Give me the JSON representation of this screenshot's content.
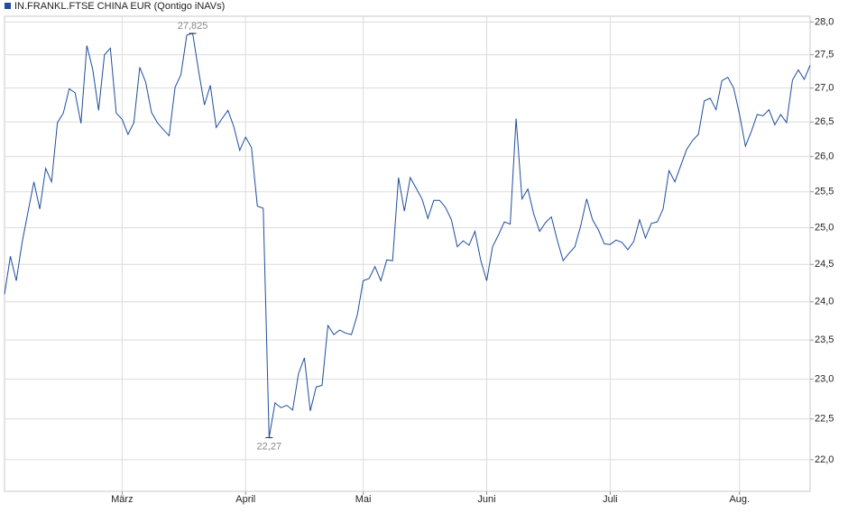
{
  "chart_data": {
    "type": "line",
    "legend": "top-left",
    "log": true,
    "grid": true,
    "ylim": [
      21.62,
      28.09
    ],
    "yticks": [
      {
        "value": 22,
        "label": "22,0"
      },
      {
        "value": 22.5,
        "label": "22,5"
      },
      {
        "value": 23,
        "label": "23,0"
      },
      {
        "value": 23.5,
        "label": "23,5"
      },
      {
        "value": 24,
        "label": "24,0"
      },
      {
        "value": 24.5,
        "label": "24,5"
      },
      {
        "value": 25,
        "label": "25,0"
      },
      {
        "value": 25.5,
        "label": "25,5"
      },
      {
        "value": 26,
        "label": "26,0"
      },
      {
        "value": 26.5,
        "label": "26,5"
      },
      {
        "value": 27,
        "label": "27,0"
      },
      {
        "value": 27.5,
        "label": "27,5"
      },
      {
        "value": 28,
        "label": "28,0"
      }
    ],
    "max_label": "27,825",
    "min_label": "22,27",
    "categories": [
      null,
      null,
      null,
      null,
      null,
      null,
      null,
      null,
      null,
      null,
      null,
      null,
      null,
      null,
      null,
      null,
      null,
      null,
      null,
      null,
      "März",
      null,
      null,
      null,
      null,
      null,
      null,
      null,
      null,
      null,
      null,
      null,
      null,
      null,
      null,
      null,
      null,
      null,
      null,
      null,
      null,
      "April",
      null,
      null,
      null,
      null,
      null,
      null,
      null,
      null,
      null,
      null,
      null,
      null,
      null,
      null,
      null,
      null,
      null,
      null,
      null,
      "Mai",
      null,
      null,
      null,
      null,
      null,
      null,
      null,
      null,
      null,
      null,
      null,
      null,
      null,
      null,
      null,
      null,
      null,
      null,
      null,
      null,
      "Juni",
      null,
      null,
      null,
      null,
      null,
      null,
      null,
      null,
      null,
      null,
      null,
      null,
      null,
      null,
      null,
      null,
      null,
      null,
      null,
      null,
      "Juli",
      null,
      null,
      null,
      null,
      null,
      null,
      null,
      null,
      null,
      null,
      null,
      null,
      null,
      null,
      null,
      null,
      null,
      null,
      null,
      null,
      null,
      "Aug.",
      null,
      null,
      null,
      null,
      null,
      null,
      null,
      null,
      null,
      null,
      null,
      null
    ],
    "series": [
      {
        "name": "IN.FRANKL.FTSE CHINA EUR (Qontigo iNAVs)",
        "color": "#1f4e9c",
        "values": [
          24.1,
          24.61,
          24.28,
          24.8,
          25.22,
          25.64,
          25.26,
          25.83,
          25.64,
          26.49,
          26.63,
          26.99,
          26.93,
          26.48,
          27.64,
          27.28,
          26.67,
          27.5,
          27.6,
          26.63,
          26.54,
          26.32,
          26.49,
          27.31,
          27.09,
          26.64,
          26.49,
          26.39,
          26.3,
          27.01,
          27.2,
          27.8,
          27.825,
          27.26,
          26.75,
          27.04,
          26.42,
          26.55,
          26.67,
          26.43,
          26.09,
          26.28,
          26.13,
          25.3,
          25.27,
          22.27,
          22.7,
          22.64,
          22.67,
          22.61,
          23.07,
          23.27,
          22.6,
          22.9,
          22.92,
          23.69,
          23.57,
          23.63,
          23.59,
          23.57,
          23.83,
          24.28,
          24.31,
          24.47,
          24.28,
          24.56,
          24.55,
          25.7,
          25.23,
          25.7,
          25.55,
          25.4,
          25.13,
          25.38,
          25.38,
          25.28,
          25.11,
          24.74,
          24.82,
          24.76,
          24.95,
          24.55,
          24.28,
          24.74,
          24.9,
          25.08,
          25.05,
          26.55,
          25.4,
          25.54,
          25.19,
          24.95,
          25.07,
          25.15,
          24.83,
          24.55,
          24.65,
          24.74,
          25.03,
          25.4,
          25.11,
          24.97,
          24.78,
          24.77,
          24.83,
          24.8,
          24.7,
          24.81,
          25.11,
          24.86,
          25.06,
          25.08,
          25.26,
          25.8,
          25.64,
          25.87,
          26.1,
          26.23,
          26.32,
          26.81,
          26.85,
          26.68,
          27.11,
          27.16,
          27.0,
          26.61,
          26.15,
          26.36,
          26.61,
          26.59,
          26.68,
          26.46,
          26.61,
          26.49,
          27.12,
          27.27,
          27.13,
          27.34
        ]
      }
    ]
  }
}
